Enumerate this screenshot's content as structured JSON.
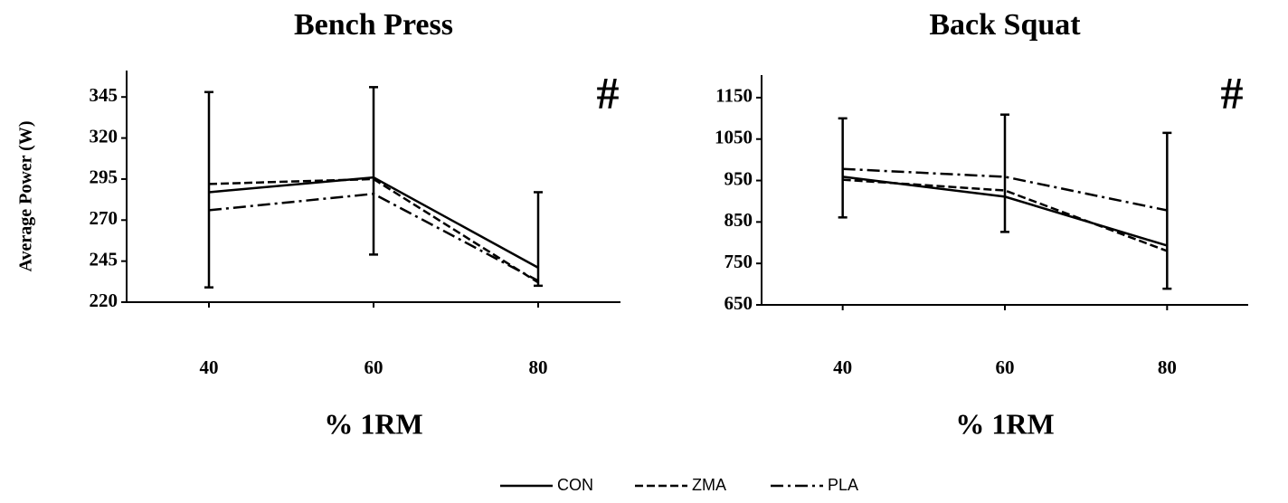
{
  "chart_data": [
    {
      "type": "line",
      "title": "Bench Press",
      "x_label": "% 1RM",
      "y_label": "Average Power (W)",
      "annotation": "#",
      "categories": [
        "40",
        "60",
        "80"
      ],
      "series": [
        {
          "color": "#000000",
          "dash": "solid",
          "values": [
            287,
            296,
            241
          ]
        },
        {
          "color": "#000000",
          "dash": "dashed",
          "values": [
            292,
            295,
            232
          ]
        },
        {
          "color": "#000000",
          "dash": "dashdot",
          "values": [
            276,
            286,
            233
          ]
        }
      ],
      "error_bars": {
        "low": [
          229,
          249,
          230
        ],
        "high": [
          348,
          351,
          287
        ]
      },
      "ylim": [
        220,
        360
      ],
      "yticks": [
        220,
        245,
        270,
        295,
        320,
        345
      ],
      "grid": false
    },
    {
      "type": "line",
      "title": "Back Squat",
      "x_label": "% 1RM",
      "annotation": "#",
      "categories": [
        "40",
        "60",
        "80"
      ],
      "series": [
        {
          "color": "#000000",
          "dash": "solid",
          "values": [
            959,
            911,
            793
          ]
        },
        {
          "color": "#000000",
          "dash": "dashed",
          "values": [
            952,
            926,
            780
          ]
        },
        {
          "color": "#000000",
          "dash": "dashdot",
          "values": [
            978,
            959,
            878
          ]
        }
      ],
      "error_bars": {
        "low": [
          861,
          826,
          689
        ],
        "high": [
          1100,
          1109,
          1065
        ]
      },
      "ylim": [
        650,
        1200
      ],
      "yticks": [
        650,
        750,
        850,
        950,
        1050,
        1150
      ],
      "grid": false
    }
  ],
  "legend": {
    "position": "bottom",
    "entries": [
      {
        "name": "CON",
        "dash": "solid",
        "color": "#000000"
      },
      {
        "name": "ZMA",
        "dash": "dashed",
        "color": "#000000"
      },
      {
        "name": "PLA",
        "dash": "dashdot",
        "color": "#000000"
      }
    ]
  }
}
